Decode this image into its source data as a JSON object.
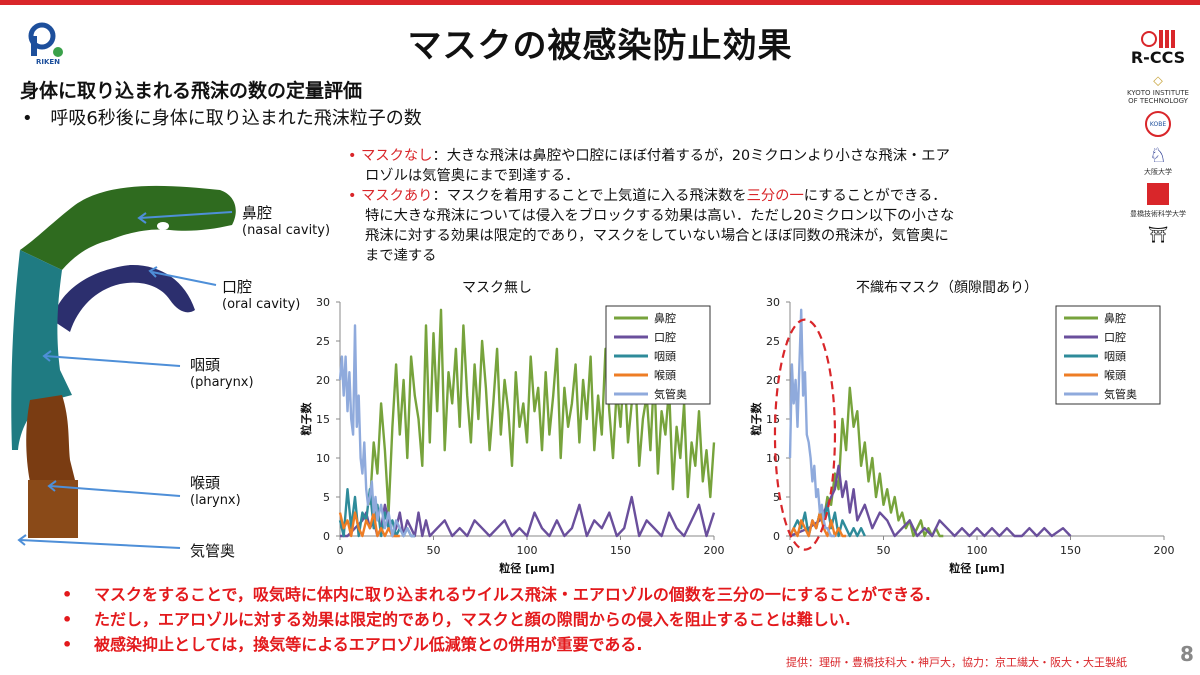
{
  "header": {
    "title": "マスクの被感染防止効果",
    "subtitle": "身体に取り込まれる飛沫の数の定量評価",
    "bullet": "呼吸6秒後に身体に取り込まれた飛沫粒子の数",
    "bullet_marker": "•"
  },
  "logos": {
    "riken": "RIKEN",
    "rccs": "R-CCS",
    "kyoto": "KYOTO INSTITUTE OF TECHNOLOGY",
    "kobe": "KOBE",
    "osaka": "大阪大学",
    "toyohashi": "豊橋技術科学大学"
  },
  "description": {
    "line1_head": "マスクなし",
    "line1_rest": "：大きな飛沫は鼻腔や口腔にほぼ付着するが，20ミクロンより小さな飛沫・エア",
    "line2": "ロゾルは気管奥にまで到達する．",
    "line3_head": "マスクあり",
    "line3_mid": "：マスクを着用することで上気道に入る飛沫数を",
    "line3_red": "三分の一",
    "line3_tail": "にすることができる．",
    "line4": "特に大きな飛沫については侵入をブロックする効果は高い．ただし20ミクロン以下の小さな",
    "line5": "飛沫に対する効果は限定的であり，マスクをしていない場合とほぼ同数の飛沫が，気管奥に",
    "line6": "まで達する"
  },
  "anatomy": {
    "nasal": "鼻腔",
    "nasal_en": "(nasal cavity)",
    "oral": "口腔",
    "oral_en": "(oral cavity)",
    "pharynx": "咽頭",
    "pharynx_en": "(pharynx)",
    "larynx": "喉頭",
    "larynx_en": "(larynx)",
    "trachea": "気管奥"
  },
  "bottom_notes": [
    "マスクをすることで，吸気時に体内に取り込まれるウイルス飛沫・エアロゾルの個数を三分の一にすることができる.",
    "ただし，エアロゾルに対する効果は限定的であり，マスクと顔の隙間からの侵入を阻止することは難しい.",
    "被感染抑止としては，換気等によるエアロゾル低減策との併用が重要である."
  ],
  "credit": "提供：理研・豊橋技科大・神戸大，協力：京工繊大・阪大・大王製紙",
  "page_number": "8",
  "colors": {
    "accent_red": "#d9262a",
    "nasal": "#77a33c",
    "oral": "#6a4f9c",
    "pharynx": "#2e8b9a",
    "larynx": "#ee7d25",
    "trachea": "#8faadc"
  },
  "chart_data": [
    {
      "type": "line",
      "title": "マスク無し",
      "xlabel": "粒径 [μm]",
      "ylabel": "粒子数",
      "xlim": [
        0,
        200
      ],
      "ylim": [
        0,
        30
      ],
      "xticks": [
        0,
        50,
        100,
        150,
        200
      ],
      "yticks": [
        0,
        5,
        10,
        15,
        20,
        25,
        30
      ],
      "legend": "top-right",
      "series": [
        {
          "name": "鼻腔",
          "color": "#77a33c",
          "x": [
            16,
            18,
            20,
            22,
            24,
            26,
            28,
            30,
            32,
            34,
            36,
            38,
            40,
            42,
            44,
            46,
            48,
            50,
            52,
            54,
            56,
            58,
            60,
            62,
            64,
            66,
            68,
            70,
            72,
            74,
            76,
            78,
            80,
            82,
            84,
            86,
            88,
            90,
            92,
            94,
            96,
            98,
            100,
            102,
            104,
            106,
            108,
            110,
            112,
            114,
            116,
            118,
            120,
            122,
            124,
            126,
            128,
            130,
            132,
            134,
            136,
            138,
            140,
            142,
            144,
            146,
            148,
            150,
            152,
            154,
            156,
            158,
            160,
            162,
            164,
            166,
            168,
            170,
            172,
            174,
            176,
            178,
            180,
            182,
            184,
            186,
            188,
            190,
            192,
            194,
            196,
            198,
            200
          ],
          "y": [
            4,
            12,
            8,
            17,
            11,
            3,
            14,
            22,
            13,
            20,
            10,
            23,
            18,
            15,
            9,
            27,
            12,
            26,
            16,
            29,
            11,
            21,
            17,
            24,
            14,
            27,
            18,
            12,
            22,
            15,
            25,
            19,
            11,
            17,
            24,
            13,
            20,
            16,
            9,
            21,
            14,
            17,
            12,
            23,
            16,
            19,
            11,
            21,
            13,
            18,
            24,
            10,
            19,
            14,
            17,
            22,
            12,
            20,
            15,
            23,
            11,
            18,
            13,
            24,
            16,
            10,
            19,
            14,
            22,
            12,
            17,
            20,
            9,
            15,
            18,
            11,
            21,
            8,
            16,
            13,
            19,
            6,
            14,
            10,
            17,
            5,
            12,
            9,
            16,
            7,
            11,
            5,
            12
          ]
        },
        {
          "name": "口腔",
          "color": "#6a4f9c",
          "x": [
            0,
            4,
            8,
            12,
            14,
            16,
            18,
            20,
            22,
            24,
            26,
            28,
            30,
            32,
            34,
            36,
            38,
            40,
            42,
            44,
            46,
            48,
            52,
            56,
            60,
            64,
            68,
            72,
            76,
            80,
            84,
            88,
            92,
            96,
            100,
            104,
            108,
            112,
            116,
            120,
            124,
            128,
            132,
            136,
            140,
            144,
            148,
            152,
            156,
            160,
            164,
            168,
            172,
            176,
            180,
            184,
            188,
            192,
            196,
            200
          ],
          "y": [
            0,
            0,
            1,
            2,
            3,
            1,
            2,
            0,
            1,
            4,
            2,
            0,
            1,
            3,
            0,
            2,
            1,
            0,
            3,
            0,
            2,
            0,
            1,
            2,
            0,
            1,
            0,
            2,
            1,
            0,
            1,
            2,
            0,
            1,
            0,
            3,
            1,
            0,
            2,
            0,
            1,
            4,
            0,
            2,
            1,
            3,
            0,
            1,
            5,
            0,
            2,
            1,
            0,
            3,
            1,
            0,
            2,
            4,
            0,
            3
          ]
        },
        {
          "name": "咽頭",
          "color": "#2e8b9a",
          "x": [
            0,
            2,
            4,
            6,
            8,
            10,
            12,
            14,
            16,
            18,
            20,
            22,
            24,
            26,
            28,
            30,
            32,
            34,
            36,
            38,
            40
          ],
          "y": [
            2,
            0,
            6,
            1,
            5,
            0,
            3,
            2,
            6,
            1,
            4,
            0,
            3,
            1,
            2,
            0,
            1,
            0,
            1,
            0,
            0
          ]
        },
        {
          "name": "喉頭",
          "color": "#ee7d25",
          "x": [
            0,
            2,
            4,
            6,
            8,
            10,
            12,
            14,
            16,
            18,
            20,
            22,
            24,
            26,
            28,
            30,
            32
          ],
          "y": [
            3,
            1,
            2,
            0,
            3,
            1,
            0,
            2,
            1,
            3,
            0,
            1,
            0,
            1,
            0,
            0,
            0
          ]
        },
        {
          "name": "気管奥",
          "color": "#8faadc",
          "x": [
            0,
            1,
            2,
            3,
            4,
            5,
            6,
            7,
            8,
            9,
            10,
            11,
            12,
            13,
            14,
            15,
            16,
            17,
            18,
            19,
            20,
            22,
            24,
            26,
            28,
            30,
            32,
            34,
            36,
            38,
            40
          ],
          "y": [
            20,
            23,
            18,
            23,
            16,
            21,
            15,
            13,
            27,
            14,
            18,
            10,
            8,
            12,
            6,
            4,
            5,
            7,
            3,
            5,
            2,
            4,
            1,
            3,
            0,
            2,
            1,
            0,
            1,
            0,
            0
          ]
        }
      ]
    },
    {
      "type": "line",
      "title": "不織布マスク（顔隙間あり）",
      "xlabel": "粒径 [μm]",
      "ylabel": "粒子数",
      "xlim": [
        0,
        200
      ],
      "ylim": [
        0,
        30
      ],
      "xticks": [
        0,
        50,
        100,
        150,
        200
      ],
      "yticks": [
        0,
        5,
        10,
        15,
        20,
        25,
        30
      ],
      "legend": "top-right",
      "series": [
        {
          "name": "鼻腔",
          "color": "#77a33c",
          "x": [
            14,
            16,
            18,
            20,
            22,
            24,
            26,
            28,
            30,
            32,
            34,
            36,
            38,
            40,
            42,
            44,
            46,
            48,
            50,
            52,
            54,
            56,
            58,
            60,
            62,
            64,
            66,
            68,
            70,
            72,
            74,
            76,
            78,
            80,
            82
          ],
          "y": [
            1,
            3,
            2,
            5,
            4,
            8,
            6,
            15,
            11,
            19,
            14,
            16,
            9,
            12,
            7,
            10,
            5,
            8,
            4,
            6,
            3,
            5,
            2,
            3,
            1,
            2,
            0,
            1,
            2,
            0,
            1,
            0,
            1,
            0,
            0
          ]
        },
        {
          "name": "口腔",
          "color": "#6a4f9c",
          "x": [
            0,
            10,
            16,
            20,
            24,
            26,
            28,
            30,
            32,
            34,
            36,
            40,
            44,
            48,
            52,
            56,
            60,
            64,
            68,
            72,
            76,
            80,
            84,
            88,
            92,
            96,
            100,
            104,
            108,
            112,
            116,
            120,
            124,
            128,
            132,
            136,
            140,
            146,
            150
          ],
          "y": [
            0,
            1,
            2,
            4,
            6,
            9,
            5,
            7,
            3,
            6,
            2,
            4,
            1,
            3,
            2,
            0,
            1,
            2,
            0,
            1,
            0,
            2,
            1,
            0,
            1,
            0,
            1,
            0,
            1,
            0,
            1,
            0,
            0,
            1,
            0,
            1,
            0,
            1,
            0
          ]
        },
        {
          "name": "咽頭",
          "color": "#2e8b9a",
          "x": [
            0,
            4,
            6,
            8,
            10,
            12,
            14,
            16,
            18,
            20,
            22,
            24,
            26,
            28,
            30,
            32,
            34,
            36,
            38,
            40
          ],
          "y": [
            0,
            2,
            1,
            3,
            0,
            2,
            1,
            3,
            2,
            4,
            1,
            3,
            0,
            2,
            1,
            0,
            1,
            0,
            1,
            0
          ]
        },
        {
          "name": "喉頭",
          "color": "#ee7d25",
          "x": [
            0,
            2,
            4,
            6,
            8,
            10,
            12,
            14,
            16,
            18,
            20,
            22,
            24,
            26,
            28,
            30
          ],
          "y": [
            0,
            1,
            0,
            2,
            1,
            0,
            2,
            1,
            3,
            1,
            0,
            2,
            0,
            1,
            0,
            0
          ]
        },
        {
          "name": "気管奥",
          "color": "#8faadc",
          "x": [
            0,
            1,
            2,
            3,
            4,
            5,
            6,
            7,
            8,
            9,
            10,
            11,
            12,
            13,
            14,
            15,
            16,
            17,
            18,
            19,
            20,
            22,
            24
          ],
          "y": [
            10,
            22,
            17,
            20,
            14,
            22,
            29,
            18,
            21,
            13,
            12,
            10,
            7,
            9,
            5,
            6,
            3,
            4,
            2,
            1,
            1,
            0,
            0
          ]
        }
      ]
    }
  ]
}
